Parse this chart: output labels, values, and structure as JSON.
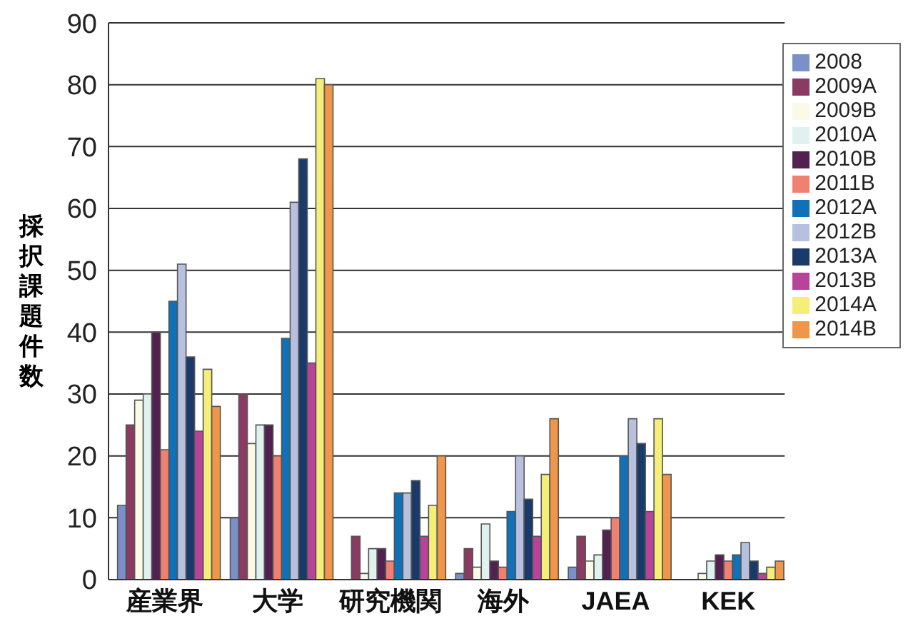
{
  "chart_data": {
    "type": "bar",
    "ylabel": "採択課題件数",
    "categories": [
      "産業界",
      "大学",
      "研究機関",
      "海外",
      "JAEA",
      "KEK"
    ],
    "series": [
      {
        "name": "2008",
        "color": "#7b8fc8",
        "values": [
          12,
          10,
          0,
          1,
          2,
          0
        ]
      },
      {
        "name": "2009A",
        "color": "#8b3a62",
        "values": [
          25,
          30,
          7,
          5,
          7,
          0
        ]
      },
      {
        "name": "2009B",
        "color": "#fafae6",
        "values": [
          29,
          22,
          1,
          2,
          3,
          1
        ]
      },
      {
        "name": "2010A",
        "color": "#e0f2f0",
        "values": [
          30,
          25,
          5,
          9,
          4,
          3
        ]
      },
      {
        "name": "2010B",
        "color": "#52214f",
        "values": [
          40,
          25,
          5,
          3,
          8,
          4
        ]
      },
      {
        "name": "2011B",
        "color": "#f08070",
        "values": [
          21,
          20,
          3,
          2,
          10,
          3
        ]
      },
      {
        "name": "2012A",
        "color": "#1070b8",
        "values": [
          45,
          39,
          14,
          11,
          20,
          4
        ]
      },
      {
        "name": "2012B",
        "color": "#b8c0e0",
        "values": [
          51,
          61,
          14,
          20,
          26,
          6
        ]
      },
      {
        "name": "2013A",
        "color": "#1a3a6a",
        "values": [
          36,
          68,
          16,
          13,
          22,
          3
        ]
      },
      {
        "name": "2013B",
        "color": "#b8449a",
        "values": [
          24,
          35,
          7,
          7,
          11,
          1
        ]
      },
      {
        "name": "2014A",
        "color": "#f5ee78",
        "values": [
          34,
          81,
          12,
          17,
          26,
          2
        ]
      },
      {
        "name": "2014B",
        "color": "#f0964a",
        "values": [
          28,
          80,
          20,
          26,
          17,
          3
        ]
      }
    ],
    "ylim": [
      0,
      90
    ],
    "yticks": [
      0,
      10,
      20,
      30,
      40,
      50,
      60,
      70,
      80,
      90
    ],
    "grid": "y",
    "legend": "top right"
  }
}
